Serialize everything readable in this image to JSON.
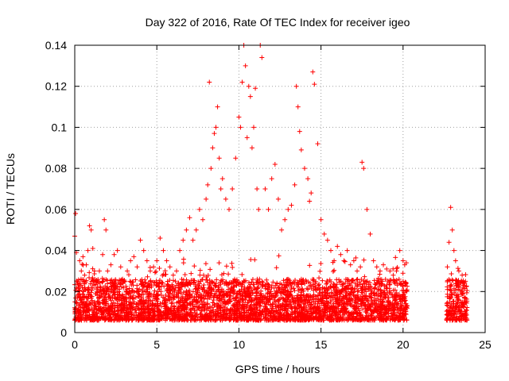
{
  "chart_data": {
    "type": "scatter",
    "title": "Day 322 of 2016, Rate Of TEC Index for receiver igeo",
    "xlabel": "GPS time / hours",
    "ylabel": "ROTI / TECUs",
    "xlim": [
      0,
      25
    ],
    "ylim": [
      0,
      0.14
    ],
    "x_ticks": [
      0,
      5,
      10,
      15,
      20,
      25
    ],
    "x_tick_labels": [
      "0",
      "5",
      "10",
      "15",
      "20",
      "25"
    ],
    "y_ticks": [
      0,
      0.02,
      0.04,
      0.06,
      0.08,
      0.1,
      0.12,
      0.14
    ],
    "y_tick_labels": [
      "0",
      "0.02",
      "0.04",
      "0.06",
      "0.08",
      "0.1",
      "0.12",
      "0.14"
    ],
    "grid": true,
    "marker": "plus",
    "color": "#ff0000",
    "series": [
      {
        "values_note_x": "hours",
        "x": [
          0.0,
          0.05,
          0.1,
          0.15,
          0.2,
          0.3,
          0.4,
          0.5,
          0.6,
          0.7,
          0.8,
          0.9,
          1.0,
          1.1,
          1.2,
          1.3,
          1.5,
          1.7,
          1.8,
          1.9,
          2.0,
          2.2,
          2.4,
          2.6,
          2.8,
          3.0,
          3.2,
          3.4,
          3.6,
          3.8,
          4.0,
          4.2,
          4.4,
          4.6,
          4.8,
          5.0,
          5.2,
          5.4,
          5.6,
          5.8,
          6.0,
          6.2,
          6.4,
          6.6,
          6.8,
          7.0,
          7.2,
          7.4,
          7.6,
          7.8,
          8.0,
          8.1,
          8.2,
          8.3,
          8.4,
          8.5,
          8.6,
          8.7,
          8.8,
          8.9,
          9.0,
          9.2,
          9.4,
          9.6,
          9.8,
          10.0,
          10.1,
          10.2,
          10.3,
          10.4,
          10.5,
          10.6,
          10.7,
          10.8,
          10.9,
          11.0,
          11.1,
          11.2,
          11.3,
          11.4,
          11.6,
          11.8,
          12.0,
          12.2,
          12.4,
          12.6,
          12.8,
          13.0,
          13.2,
          13.4,
          13.5,
          13.6,
          13.7,
          13.8,
          14.0,
          14.2,
          14.3,
          14.4,
          14.5,
          14.6,
          14.8,
          15.0,
          15.2,
          15.4,
          15.6,
          15.8,
          16.0,
          16.2,
          16.4,
          16.6,
          16.8,
          17.0,
          17.2,
          17.4,
          17.5,
          17.6,
          17.8,
          18.0,
          18.2,
          18.4,
          18.6,
          18.8,
          19.0,
          19.2,
          19.4,
          19.6,
          19.8,
          20.0,
          20.1,
          20.2,
          22.7,
          22.8,
          22.9,
          23.0,
          23.1,
          23.2,
          23.4,
          23.6,
          23.8,
          0.02,
          0.08,
          0.12,
          0.18,
          0.25,
          0.35,
          0.45,
          0.55,
          0.65,
          0.75,
          0.85,
          0.95,
          1.05,
          1.15,
          1.25,
          1.35,
          1.55,
          1.75,
          1.85,
          1.95,
          2.05,
          2.25,
          2.45,
          2.65,
          2.85,
          3.05,
          3.25,
          3.45,
          3.65,
          3.85,
          4.05,
          4.25,
          4.45,
          4.65,
          4.85,
          5.05,
          5.25,
          5.45,
          5.65,
          5.85,
          6.05,
          6.25,
          6.45,
          6.65,
          6.85,
          7.05,
          7.25,
          7.45,
          7.65,
          7.85,
          8.05,
          8.15,
          8.25,
          8.35,
          8.45,
          8.55,
          8.65,
          8.75,
          8.85,
          8.95,
          9.05,
          9.25,
          9.45,
          9.65,
          9.85,
          10.05,
          10.15,
          10.25,
          10.35,
          10.45,
          10.55,
          10.65,
          10.75,
          10.85,
          10.95,
          11.05,
          11.15,
          11.25,
          11.35,
          11.45,
          11.65,
          11.85,
          12.05,
          12.25,
          12.45,
          12.65,
          12.85,
          13.05,
          13.25,
          13.45,
          13.55,
          13.65,
          13.75,
          13.85,
          14.05,
          14.25,
          14.35,
          14.45,
          14.55,
          14.65,
          14.85,
          15.05,
          15.25,
          15.45,
          15.65,
          15.85,
          16.05,
          16.25,
          16.45,
          16.65,
          16.85,
          17.05,
          17.25,
          17.45,
          17.55,
          17.65,
          17.85,
          18.05,
          18.25,
          18.45,
          18.65,
          18.85,
          19.05,
          19.25,
          19.45,
          19.65,
          19.85,
          20.05,
          20.15,
          20.25,
          22.75,
          22.85,
          22.95,
          23.05,
          23.15,
          23.25,
          23.45,
          23.65,
          23.85
        ],
        "y": [
          0.047,
          0.058,
          0.039,
          0.025,
          0.02,
          0.035,
          0.03,
          0.037,
          0.028,
          0.033,
          0.04,
          0.052,
          0.05,
          0.041,
          0.03,
          0.025,
          0.03,
          0.038,
          0.055,
          0.05,
          0.03,
          0.033,
          0.038,
          0.04,
          0.032,
          0.025,
          0.03,
          0.035,
          0.037,
          0.032,
          0.045,
          0.04,
          0.035,
          0.03,
          0.032,
          0.035,
          0.046,
          0.04,
          0.035,
          0.032,
          0.028,
          0.03,
          0.04,
          0.045,
          0.05,
          0.056,
          0.045,
          0.05,
          0.06,
          0.055,
          0.065,
          0.072,
          0.122,
          0.08,
          0.09,
          0.097,
          0.1,
          0.11,
          0.085,
          0.07,
          0.075,
          0.065,
          0.06,
          0.07,
          0.085,
          0.105,
          0.1,
          0.122,
          0.14,
          0.13,
          0.095,
          0.12,
          0.115,
          0.09,
          0.1,
          0.119,
          0.07,
          0.06,
          0.14,
          0.134,
          0.07,
          0.06,
          0.075,
          0.082,
          0.065,
          0.05,
          0.055,
          0.06,
          0.062,
          0.072,
          0.12,
          0.11,
          0.098,
          0.089,
          0.08,
          0.075,
          0.064,
          0.068,
          0.127,
          0.121,
          0.092,
          0.055,
          0.048,
          0.045,
          0.04,
          0.035,
          0.042,
          0.038,
          0.035,
          0.04,
          0.033,
          0.035,
          0.03,
          0.032,
          0.083,
          0.08,
          0.06,
          0.048,
          0.035,
          0.032,
          0.03,
          0.033,
          0.031,
          0.03,
          0.028,
          0.03,
          0.04,
          0.035,
          0.033,
          0.034,
          0.032,
          0.044,
          0.061,
          0.05,
          0.04,
          0.035,
          0.03,
          0.028,
          0.025,
          0.01,
          0.012,
          0.014,
          0.011,
          0.013,
          0.009,
          0.015,
          0.012,
          0.01,
          0.013,
          0.011,
          0.014,
          0.012,
          0.01,
          0.013,
          0.011,
          0.012,
          0.01,
          0.014,
          0.011,
          0.013,
          0.01,
          0.012,
          0.011,
          0.013,
          0.012,
          0.01,
          0.014,
          0.011,
          0.012,
          0.013,
          0.01,
          0.012,
          0.011,
          0.013,
          0.012,
          0.01,
          0.014,
          0.011,
          0.012,
          0.013,
          0.011,
          0.015,
          0.013,
          0.012,
          0.014,
          0.016,
          0.015,
          0.017,
          0.018,
          0.02,
          0.019,
          0.018,
          0.021,
          0.017,
          0.019,
          0.02,
          0.022,
          0.018,
          0.016,
          0.017,
          0.018,
          0.015,
          0.019,
          0.017,
          0.02,
          0.021,
          0.018,
          0.022,
          0.019,
          0.02,
          0.018,
          0.017,
          0.019,
          0.016,
          0.018,
          0.017,
          0.016,
          0.019,
          0.017,
          0.015,
          0.016,
          0.014,
          0.015,
          0.016,
          0.014,
          0.015,
          0.016,
          0.017,
          0.015,
          0.018,
          0.016,
          0.017,
          0.015,
          0.016,
          0.018,
          0.017,
          0.016,
          0.015,
          0.014,
          0.016,
          0.015,
          0.013,
          0.014,
          0.013,
          0.012,
          0.014,
          0.013,
          0.012,
          0.014,
          0.013,
          0.012,
          0.014,
          0.013,
          0.015,
          0.013,
          0.012,
          0.014,
          0.011,
          0.013,
          0.012,
          0.011,
          0.013,
          0.012,
          0.011,
          0.012,
          0.013,
          0.011,
          0.012,
          0.013,
          0.01,
          0.012,
          0.014,
          0.013,
          0.011,
          0.012,
          0.01,
          0.013,
          0.011
        ]
      }
    ]
  }
}
